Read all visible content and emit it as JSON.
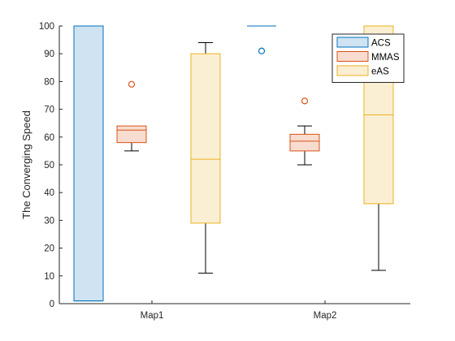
{
  "chart_data": {
    "type": "boxplot",
    "ylabel": "The Converging Speed",
    "xlabel": "",
    "ylim": [
      0,
      100
    ],
    "yticks": [
      0,
      10,
      20,
      30,
      40,
      50,
      60,
      70,
      80,
      90,
      100
    ],
    "categories": [
      "Map1",
      "Map2"
    ],
    "legend_position": "top-right",
    "grid": false,
    "series": [
      {
        "name": "ACS",
        "edge_color": "#0072BD",
        "fill_color": "#cfe3f2",
        "boxes": [
          {
            "category": "Map1",
            "whisker_low": 1,
            "q1": 1,
            "median": 1,
            "q3": 100,
            "whisker_high": 100,
            "outliers": []
          },
          {
            "category": "Map2",
            "whisker_low": 100,
            "q1": 100,
            "median": 100,
            "q3": 100,
            "whisker_high": 100,
            "outliers": [
              91
            ]
          }
        ]
      },
      {
        "name": "MMAS",
        "edge_color": "#D95319",
        "fill_color": "#f8dccf",
        "boxes": [
          {
            "category": "Map1",
            "whisker_low": 55,
            "q1": 58,
            "median": 62.5,
            "q3": 64,
            "whisker_high": 64,
            "outliers": [
              79
            ]
          },
          {
            "category": "Map2",
            "whisker_low": 50,
            "q1": 55,
            "median": 58.5,
            "q3": 61,
            "whisker_high": 64,
            "outliers": [
              73
            ]
          }
        ]
      },
      {
        "name": "eAS",
        "edge_color": "#EDB120",
        "fill_color": "#fbefd3",
        "boxes": [
          {
            "category": "Map1",
            "whisker_low": 11,
            "q1": 29,
            "median": 52,
            "q3": 90,
            "whisker_high": 94,
            "outliers": []
          },
          {
            "category": "Map2",
            "whisker_low": 12,
            "q1": 36,
            "median": 68,
            "q3": 100,
            "whisker_high": 100,
            "outliers": []
          }
        ]
      }
    ]
  }
}
